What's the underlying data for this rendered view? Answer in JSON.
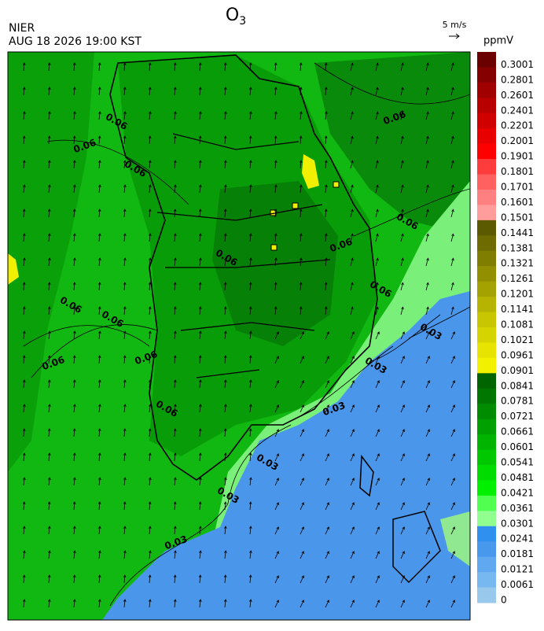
{
  "header": {
    "title": {
      "text": "O",
      "subscript": "3"
    },
    "agency": "NIER",
    "datetime": "AUG 18 2026 19:00 KST",
    "wind_scale": "5 m/s"
  },
  "colorbar": {
    "unit": "ppmV",
    "levels": [
      {
        "label": "0.3001",
        "color": "#6b0000"
      },
      {
        "label": "0.2801",
        "color": "#850000"
      },
      {
        "label": "0.2601",
        "color": "#a00000"
      },
      {
        "label": "0.2401",
        "color": "#b80000"
      },
      {
        "label": "0.2201",
        "color": "#d00000"
      },
      {
        "label": "0.2001",
        "color": "#e80000"
      },
      {
        "label": "0.1901",
        "color": "#ff0000"
      },
      {
        "label": "0.1801",
        "color": "#ff3c3c"
      },
      {
        "label": "0.1701",
        "color": "#ff6060"
      },
      {
        "label": "0.1601",
        "color": "#ff8080"
      },
      {
        "label": "0.1501",
        "color": "#ff9c9c"
      },
      {
        "label": "0.1441",
        "color": "#5c5a00"
      },
      {
        "label": "0.1381",
        "color": "#6e6c00"
      },
      {
        "label": "0.1321",
        "color": "#807e00"
      },
      {
        "label": "0.1261",
        "color": "#929000"
      },
      {
        "label": "0.1201",
        "color": "#a4a200"
      },
      {
        "label": "0.1141",
        "color": "#b6b400"
      },
      {
        "label": "0.1081",
        "color": "#c8c600"
      },
      {
        "label": "0.1021",
        "color": "#d6d400"
      },
      {
        "label": "0.0961",
        "color": "#e6e400"
      },
      {
        "label": "0.0901",
        "color": "#f2f200"
      },
      {
        "label": "0.0841",
        "color": "#006400"
      },
      {
        "label": "0.0781",
        "color": "#007800"
      },
      {
        "label": "0.0721",
        "color": "#008c00"
      },
      {
        "label": "0.0661",
        "color": "#00a000"
      },
      {
        "label": "0.0601",
        "color": "#00b400"
      },
      {
        "label": "0.0541",
        "color": "#00c800"
      },
      {
        "label": "0.0481",
        "color": "#00dc00"
      },
      {
        "label": "0.0421",
        "color": "#00f000"
      },
      {
        "label": "0.0361",
        "color": "#50ff50"
      },
      {
        "label": "0.0301",
        "color": "#90ff90"
      },
      {
        "label": "0.0241",
        "color": "#3090f0"
      },
      {
        "label": "0.0181",
        "color": "#4898ee"
      },
      {
        "label": "0.0121",
        "color": "#60a8f0"
      },
      {
        "label": "0.0061",
        "color": "#78b8f0"
      },
      {
        "label": "0",
        "color": "#98c8ec"
      }
    ]
  },
  "contour_labels": [
    "0.06",
    "0.06",
    "0.06",
    "0.06",
    "0.06",
    "0.06",
    "0.06",
    "0.06",
    "0.06",
    "0.06",
    "0.06",
    "0.06",
    "0.06",
    "0.03",
    "0.03",
    "0.03",
    "0.03",
    "0.03",
    "0.03"
  ]
}
